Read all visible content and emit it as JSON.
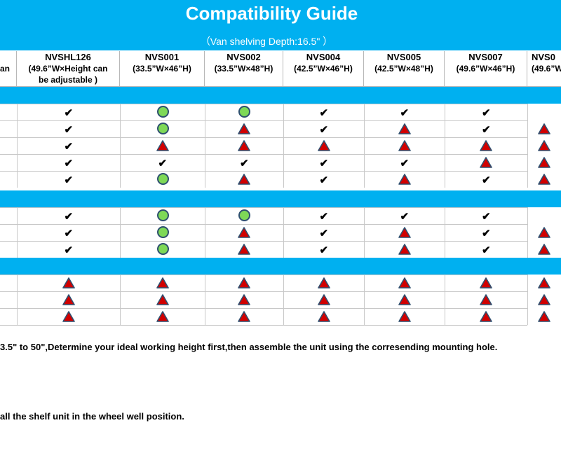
{
  "title": "Compatibility Guide",
  "subtitle": "（Van shelving Depth:16.5\"  ）",
  "headers": [
    {
      "code": "",
      "lines": [
        "an"
      ]
    },
    {
      "code": "NVSHL126",
      "lines": [
        "(49.6”W×Height can",
        "be adjustable )"
      ]
    },
    {
      "code": "NVS001",
      "lines": [
        "(33.5”W×46”H)"
      ]
    },
    {
      "code": "NVS002",
      "lines": [
        "(33.5”W×48”H)"
      ]
    },
    {
      "code": "NVS004",
      "lines": [
        "(42.5”W×46”H)"
      ]
    },
    {
      "code": "NVS005",
      "lines": [
        "(42.5”W×48”H)"
      ]
    },
    {
      "code": "NVS007",
      "lines": [
        "(49.6”W×46”H)"
      ]
    },
    {
      "code": "NVS0",
      "lines": [
        "(49.6”W"
      ]
    }
  ],
  "legend_symbols": {
    "check": "checkmark",
    "circle": "green-circle",
    "triangle": "red-triangle"
  },
  "colors": {
    "banner": "#00b0f0",
    "circle_fill": "#7ed957",
    "triangle_fill": "#d10000",
    "outline": "#2f5070"
  },
  "groups": [
    {
      "rows": [
        [
          "check",
          "circle",
          "circle",
          "check",
          "check",
          "check",
          "blank"
        ],
        [
          "check",
          "circle",
          "triangle",
          "check",
          "triangle",
          "check",
          "triangle"
        ],
        [
          "check",
          "triangle",
          "triangle",
          "triangle",
          "triangle",
          "triangle",
          "triangle"
        ],
        [
          "check",
          "check",
          "check",
          "check",
          "check",
          "triangle",
          "triangle"
        ],
        [
          "check",
          "circle",
          "triangle",
          "check",
          "triangle",
          "check",
          "triangle"
        ]
      ]
    },
    {
      "rows": [
        [
          "check",
          "circle",
          "circle",
          "check",
          "check",
          "check",
          "blank"
        ],
        [
          "check",
          "circle",
          "triangle",
          "check",
          "triangle",
          "check",
          "triangle"
        ],
        [
          "check",
          "circle",
          "triangle",
          "check",
          "triangle",
          "check",
          "triangle"
        ]
      ]
    },
    {
      "rows": [
        [
          "triangle",
          "triangle",
          "triangle",
          "triangle",
          "triangle",
          "triangle",
          "triangle"
        ],
        [
          "triangle",
          "triangle",
          "triangle",
          "triangle",
          "triangle",
          "triangle",
          "triangle"
        ],
        [
          "triangle",
          "triangle",
          "triangle",
          "triangle",
          "triangle",
          "triangle",
          "triangle"
        ]
      ]
    }
  ],
  "notes": {
    "height": "3.5\" to 50\",Determine your ideal working height first,then assemble the unit using the corresending mounting hole.",
    "wheel": "all the shelf unit in the wheel well position."
  }
}
